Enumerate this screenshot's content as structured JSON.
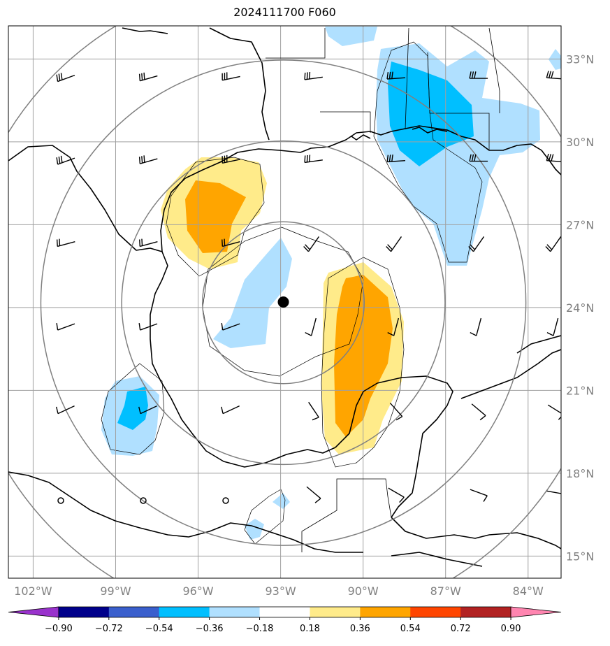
{
  "title": "2024111700 F060",
  "lat_labels": [
    "33°N",
    "30°N",
    "27°N",
    "24°N",
    "21°N",
    "18°N",
    "15°N"
  ],
  "lon_labels": [
    "102°W",
    "99°W",
    "96°W",
    "93°W",
    "90°W",
    "87°W",
    "84°W"
  ],
  "colorbar": {
    "labels": [
      "−0.90",
      "−0.72",
      "−0.54",
      "−0.36",
      "−0.18",
      "0.18",
      "0.36",
      "0.54",
      "0.72",
      "0.90"
    ],
    "colors": [
      "#9932cc",
      "#00008b",
      "#3a5fcd",
      "#00bfff",
      "#b0e0ff",
      "#ffffff",
      "#ffeb8a",
      "#ffa500",
      "#ff4500",
      "#b22222",
      "#ff85b0"
    ]
  },
  "storm_center": {
    "lat": 24.2,
    "lon": -92.9
  },
  "range_rings_deg": [
    3,
    6,
    9,
    12
  ],
  "map_extent": {
    "lon_min": -102.9,
    "lon_max": -82.8,
    "lat_min": 14.2,
    "lat_max": 34.2
  },
  "fill_colors": {
    "light_blue": "#b0e0ff",
    "blue": "#00bfff",
    "yellow": "#ffeb8a",
    "orange": "#ffa500"
  },
  "grid_color": "#a0a0a0",
  "ring_color": "#808080"
}
